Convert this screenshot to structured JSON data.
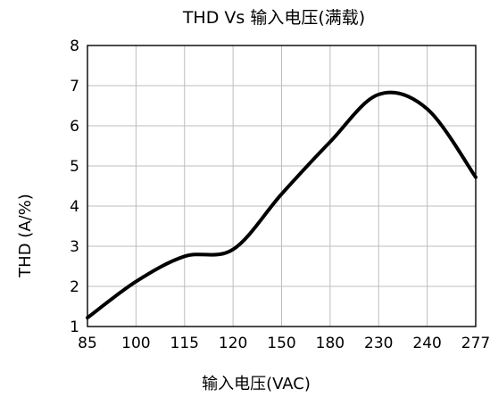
{
  "chart_data": {
    "type": "line",
    "title": "THD Vs 输入电压(满载)",
    "xlabel": "输入电压(VAC)",
    "ylabel": "THD (A/%)",
    "categories": [
      "85",
      "100",
      "115",
      "120",
      "150",
      "180",
      "230",
      "240",
      "277"
    ],
    "ylim": [
      1,
      8
    ],
    "yticks": [
      1,
      2,
      3,
      4,
      5,
      6,
      7,
      8
    ],
    "grid": true,
    "line_color": "#000000",
    "series": [
      {
        "values": [
          1.22,
          2.12,
          2.75,
          2.92,
          4.3,
          5.6,
          6.78,
          6.42,
          4.72
        ]
      }
    ]
  }
}
